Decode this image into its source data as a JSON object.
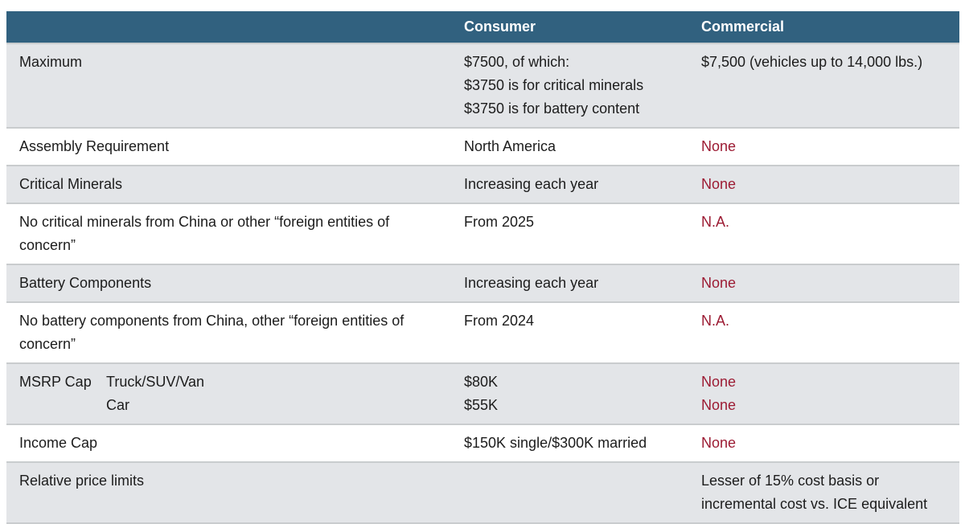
{
  "colors": {
    "header-bg": "#31617f",
    "accent-red": "#9c1b33",
    "row-shade": "#e3e5e8",
    "divider": "#c9ccce",
    "text": "#1c1c1c"
  },
  "header": {
    "consumer": "Consumer",
    "commercial": "Commercial"
  },
  "rows": [
    {
      "label": "Maximum",
      "consumer": [
        "$7500, of which:",
        "$3750 is for critical minerals",
        "$3750 is for battery content"
      ],
      "commercial": [
        "$7,500 (vehicles up to 14,000 lbs.)"
      ]
    },
    {
      "label": "Assembly Requirement",
      "consumer": [
        "North America"
      ],
      "commercial": [
        "None"
      ]
    },
    {
      "label": "Critical Minerals",
      "consumer": [
        "Increasing each year"
      ],
      "commercial": [
        "None"
      ]
    },
    {
      "label": "No critical minerals from China or other “foreign entities of concern”",
      "consumer": [
        "From 2025"
      ],
      "commercial": [
        "N.A."
      ]
    },
    {
      "label": "Battery Components",
      "consumer": [
        "Increasing each year"
      ],
      "commercial": [
        "None"
      ]
    },
    {
      "label": "No battery components from China, other “foreign entities of concern”",
      "consumer": [
        "From 2024"
      ],
      "commercial": [
        "N.A."
      ]
    },
    {
      "label": "MSRP Cap",
      "sublabels": [
        "Truck/SUV/Van",
        "Car"
      ],
      "consumer": [
        "$80K",
        "$55K"
      ],
      "commercial": [
        "None",
        "None"
      ]
    },
    {
      "label": "Income Cap",
      "consumer": [
        "$150K single/$300K married"
      ],
      "commercial": [
        "None"
      ]
    },
    {
      "label": "Relative price limits",
      "consumer": [],
      "commercial": [
        "Lesser of 15% cost basis or",
        "incremental cost vs. ICE equivalent"
      ]
    }
  ]
}
